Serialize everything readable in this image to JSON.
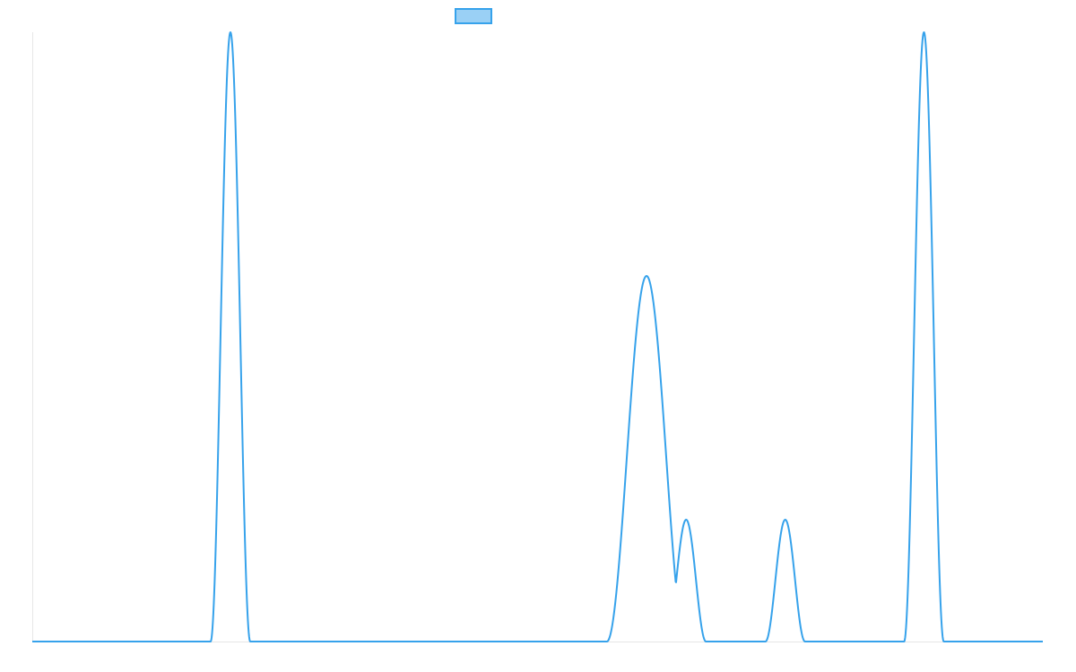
{
  "chart_data": {
    "type": "line",
    "title": "",
    "xlabel": "",
    "ylabel": "",
    "grid": false,
    "legend_placement": "top-center",
    "colors": {
      "line": "#36A2EB",
      "legend_fill": "#9AD0F5",
      "axis": "#e6e6e6"
    },
    "xlim": [
      0,
      51
    ],
    "ylim": [
      0,
      1
    ],
    "series": [
      {
        "name": "",
        "peaks": [
          {
            "center": 10,
            "height": 1.0,
            "half_width": 1.0
          },
          {
            "center": 31,
            "height": 0.6,
            "half_width": 2.0
          },
          {
            "center": 33,
            "height": 0.2,
            "half_width": 1.0
          },
          {
            "center": 38,
            "height": 0.2,
            "half_width": 1.0
          },
          {
            "center": 45,
            "height": 1.0,
            "half_width": 1.0
          }
        ]
      }
    ]
  }
}
